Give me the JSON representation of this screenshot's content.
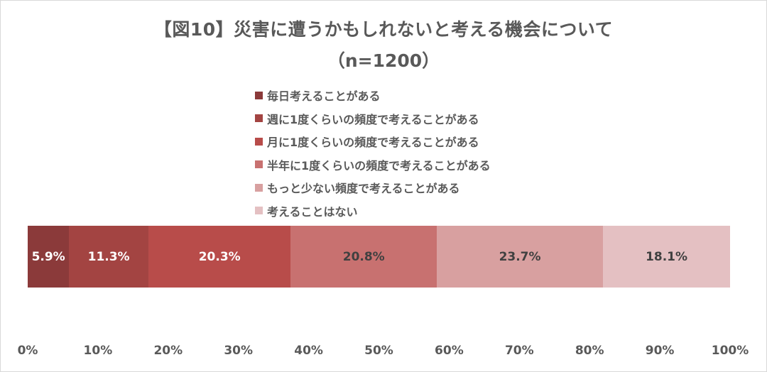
{
  "title": {
    "line1": "【図10】災害に遭うかもしれないと考える機会について",
    "line2": "（n=1200）"
  },
  "legend": [
    {
      "label": "毎日考えることがある",
      "color": "#8b3a3a"
    },
    {
      "label": "週に1度くらいの頻度で考えることがある",
      "color": "#a34442"
    },
    {
      "label": "月に1度くらいの頻度で考えることがある",
      "color": "#b84c4a"
    },
    {
      "label": "半年に1度くらいの頻度で考えることがある",
      "color": "#c87170"
    },
    {
      "label": "もっと少ない頻度で考えることがある",
      "color": "#d8a0a0"
    },
    {
      "label": "考えることはない",
      "color": "#e4c0c2"
    }
  ],
  "bar_labels": [
    "5.9%",
    "11.3%",
    "20.3%",
    "20.8%",
    "23.7%",
    "18.1%"
  ],
  "axis_ticks": [
    "0%",
    "10%",
    "20%",
    "30%",
    "40%",
    "50%",
    "60%",
    "70%",
    "80%",
    "90%",
    "100%"
  ],
  "chart_data": {
    "type": "bar",
    "orientation": "horizontal",
    "stacked": true,
    "percent_stacked": true,
    "title": "【図10】災害に遭うかもしれないと考える機会について（n=1200）",
    "categories": [
      ""
    ],
    "series": [
      {
        "name": "毎日考えることがある",
        "values": [
          5.9
        ],
        "color": "#8b3a3a"
      },
      {
        "name": "週に1度くらいの頻度で考えることがある",
        "values": [
          11.3
        ],
        "color": "#a34442"
      },
      {
        "name": "月に1度くらいの頻度で考えることがある",
        "values": [
          20.3
        ],
        "color": "#b84c4a"
      },
      {
        "name": "半年に1度くらいの頻度で考えることがある",
        "values": [
          20.8
        ],
        "color": "#c87170"
      },
      {
        "name": "もっと少ない頻度で考えることがある",
        "values": [
          23.7
        ],
        "color": "#d8a0a0"
      },
      {
        "name": "考えることはない",
        "values": [
          18.1
        ],
        "color": "#e4c0c2"
      }
    ],
    "xlabel": "",
    "ylabel": "",
    "xlim": [
      0,
      100
    ],
    "x_ticks": [
      "0%",
      "10%",
      "20%",
      "30%",
      "40%",
      "50%",
      "60%",
      "70%",
      "80%",
      "90%",
      "100%"
    ],
    "grid": false,
    "legend_position": "top",
    "data_labels": true
  }
}
